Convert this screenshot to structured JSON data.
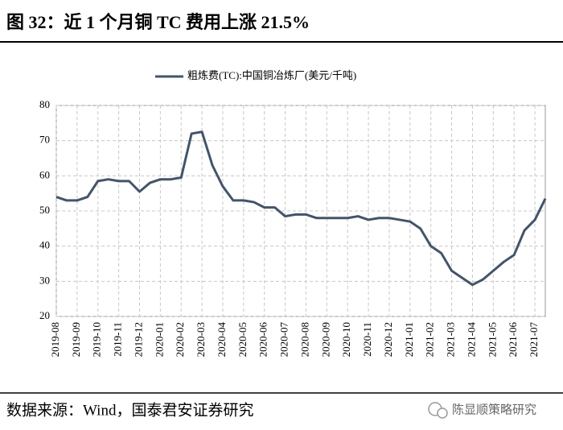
{
  "chart_data": {
    "type": "line",
    "title": "图 32：近 1 个月铜 TC 费用上涨 21.5%",
    "categories": [
      "2019-08",
      null,
      "2019-09",
      null,
      "2019-10",
      null,
      "2019-11",
      null,
      "2019-12",
      null,
      "2020-01",
      null,
      "2020-02",
      null,
      "2020-03",
      null,
      "2020-04",
      null,
      "2020-05",
      null,
      "2020-06",
      null,
      "2020-07",
      null,
      "2020-08",
      null,
      "2020-09",
      null,
      "2020-10",
      null,
      "2020-11",
      null,
      "2020-12",
      null,
      "2021-01",
      null,
      "2021-02",
      null,
      "2021-03",
      null,
      "2021-04",
      null,
      "2021-05",
      null,
      "2021-06",
      null,
      "2021-07",
      null
    ],
    "series": [
      {
        "name": "粗炼费(TC):中国铜冶炼厂(美元/千吨)",
        "color": "#44546a",
        "values": [
          54,
          53,
          53,
          54,
          58.5,
          59,
          58.5,
          58.5,
          55.5,
          58,
          59,
          59,
          59.5,
          72,
          72.5,
          63,
          57,
          53,
          53,
          52.5,
          51,
          51,
          48.5,
          49,
          49,
          48,
          48,
          48,
          48,
          48.5,
          47.5,
          48,
          48,
          47.5,
          47,
          45,
          40,
          38,
          33,
          31,
          29,
          30.5,
          33,
          35.5,
          37.5,
          44.5,
          47.5,
          53.5
        ]
      }
    ],
    "ylim": [
      20,
      80
    ],
    "yticks": [
      20,
      30,
      40,
      50,
      60,
      70,
      80
    ],
    "grid": true,
    "legend": "top"
  },
  "footer": {
    "source": "数据来源：Wind，国泰君安证券研究",
    "watermark": "陈显顺策略研究"
  }
}
